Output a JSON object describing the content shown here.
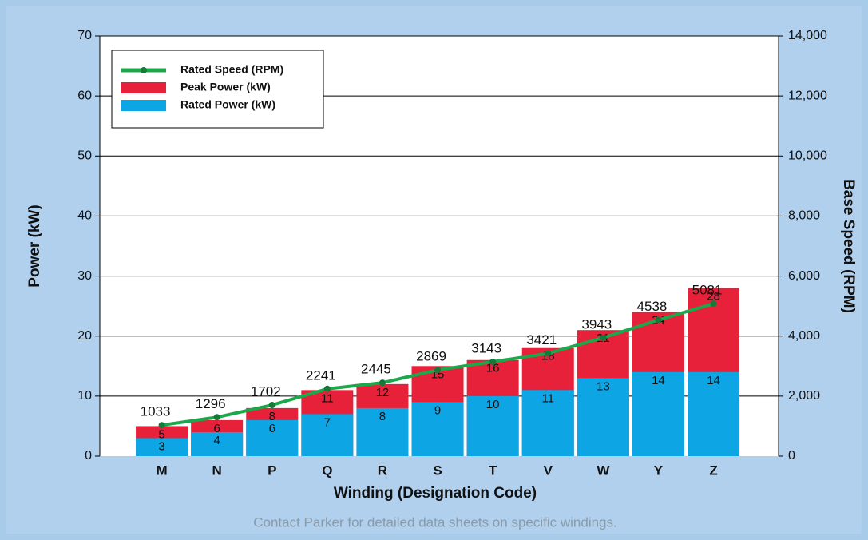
{
  "chart_data": {
    "type": "bar",
    "xlabel": "Winding (Designation Code)",
    "ylabel": "Power (kW)",
    "y2label": "Base Speed (RPM)",
    "footnote": "Contact Parker for detailed data sheets on specific windings.",
    "categories": [
      "M",
      "N",
      "P",
      "Q",
      "R",
      "S",
      "T",
      "V",
      "W",
      "Y",
      "Z"
    ],
    "series": [
      {
        "name": "Rated Speed (RPM)",
        "color": "#1aa84a",
        "type": "line",
        "axis": "y2",
        "values": [
          1033,
          1296,
          1702,
          2241,
          2445,
          2869,
          3143,
          3421,
          3943,
          4538,
          5081
        ]
      },
      {
        "name": "Peak Power (kW)",
        "color": "#e8213a",
        "type": "bar",
        "values": [
          5,
          6,
          8,
          11,
          12,
          15,
          16,
          18,
          21,
          24,
          28
        ]
      },
      {
        "name": "Rated Power (kW)",
        "color": "#0ea5e4",
        "type": "bar",
        "values": [
          3,
          4,
          6,
          7,
          8,
          9,
          10,
          11,
          13,
          14,
          14
        ]
      }
    ],
    "ylim": [
      0,
      70
    ],
    "yticks": [
      0,
      10,
      20,
      30,
      40,
      50,
      60,
      70
    ],
    "y2lim": [
      0,
      14000
    ],
    "y2ticks": [
      0,
      {
        "value": 2000,
        "label": "2,000"
      },
      {
        "value": 4000,
        "label": "4,000"
      },
      {
        "value": 6000,
        "label": "6,000"
      },
      {
        "value": 8000,
        "label": "8,000"
      },
      {
        "value": 10000,
        "label": "10,000"
      },
      {
        "value": 12000,
        "label": "12,000"
      },
      {
        "value": 14000,
        "label": "14,000"
      }
    ],
    "grid": true,
    "legend": "upper left"
  }
}
